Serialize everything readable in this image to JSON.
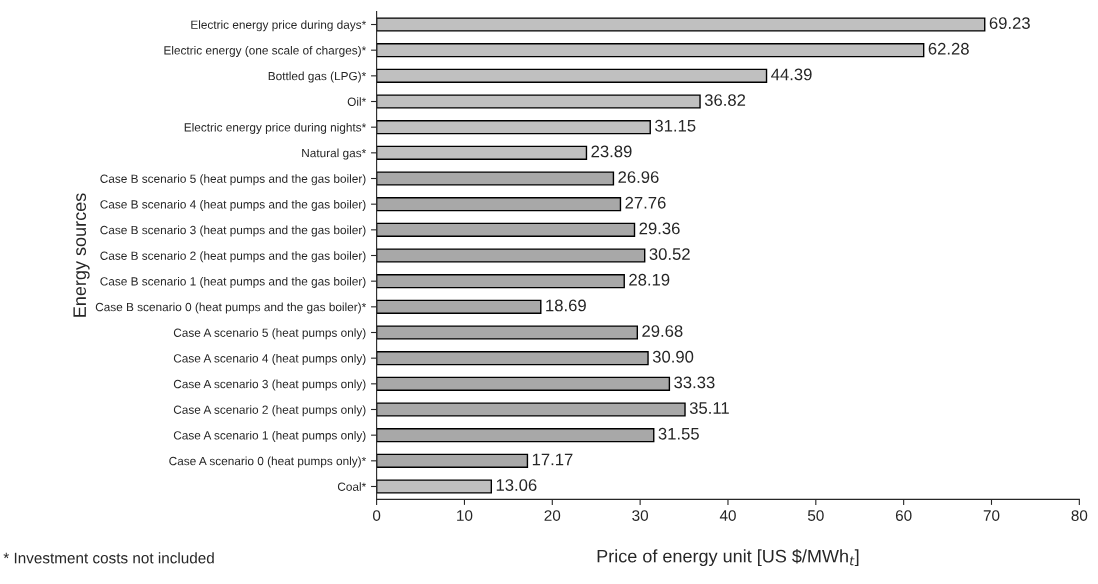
{
  "chart_data": {
    "type": "bar",
    "orientation": "horizontal",
    "categories": [
      "Electric energy price during days*",
      "Electric energy (one scale of charges)*",
      "Bottled gas (LPG)*",
      "Oil*",
      "Electric energy price during nights*",
      "Natural gas*",
      "Case B scenario 5 (heat pumps and the gas boiler)",
      "Case B scenario 4 (heat pumps and the gas boiler)",
      "Case B scenario 3 (heat pumps and the gas boiler)",
      "Case B scenario 2 (heat pumps and the gas boiler)",
      "Case B scenario 1 (heat pumps and the gas boiler)",
      "Case B scenario 0 (heat pumps and the gas boiler)*",
      "Case A scenario 5 (heat pumps only)",
      "Case A scenario 4 (heat pumps only)",
      "Case A scenario 3 (heat pumps only)",
      "Case A scenario 2 (heat pumps only)",
      "Case A scenario 1 (heat pumps only)",
      "Case A scenario 0 (heat pumps only)*",
      "Coal*"
    ],
    "values": [
      69.23,
      62.28,
      44.39,
      36.82,
      31.15,
      23.89,
      26.96,
      27.76,
      29.36,
      30.52,
      28.19,
      18.69,
      29.68,
      30.9,
      33.33,
      35.11,
      31.55,
      17.17,
      13.06
    ],
    "value_labels": [
      "69.23",
      "62.28",
      "44.39",
      "36.82",
      "31.15",
      "23.89",
      "26.96",
      "27.76",
      "29.36",
      "30.52",
      "28.19",
      "18.69",
      "29.68",
      "30.90",
      "33.33",
      "35.11",
      "31.55",
      "17.17",
      "13.06"
    ],
    "colors": [
      "#c0c0c0",
      "#c0c0c0",
      "#c0c0c0",
      "#c0c0c0",
      "#c0c0c0",
      "#c0c0c0",
      "#a8a8a8",
      "#a8a8a8",
      "#a8a8a8",
      "#a8a8a8",
      "#a8a8a8",
      "#a8a8a8",
      "#a8a8a8",
      "#a8a8a8",
      "#a8a8a8",
      "#a8a8a8",
      "#a8a8a8",
      "#a8a8a8",
      "#c0c0c0"
    ],
    "xlabel": "Price of energy unit [US $/MWh$_{t}$]",
    "ylabel": "Energy sources",
    "xlim": [
      0,
      80
    ],
    "xticks": [
      0,
      10,
      20,
      30,
      40,
      50,
      60,
      70,
      80
    ],
    "grid": false,
    "annotations": [
      "* Investment costs not included"
    ]
  }
}
